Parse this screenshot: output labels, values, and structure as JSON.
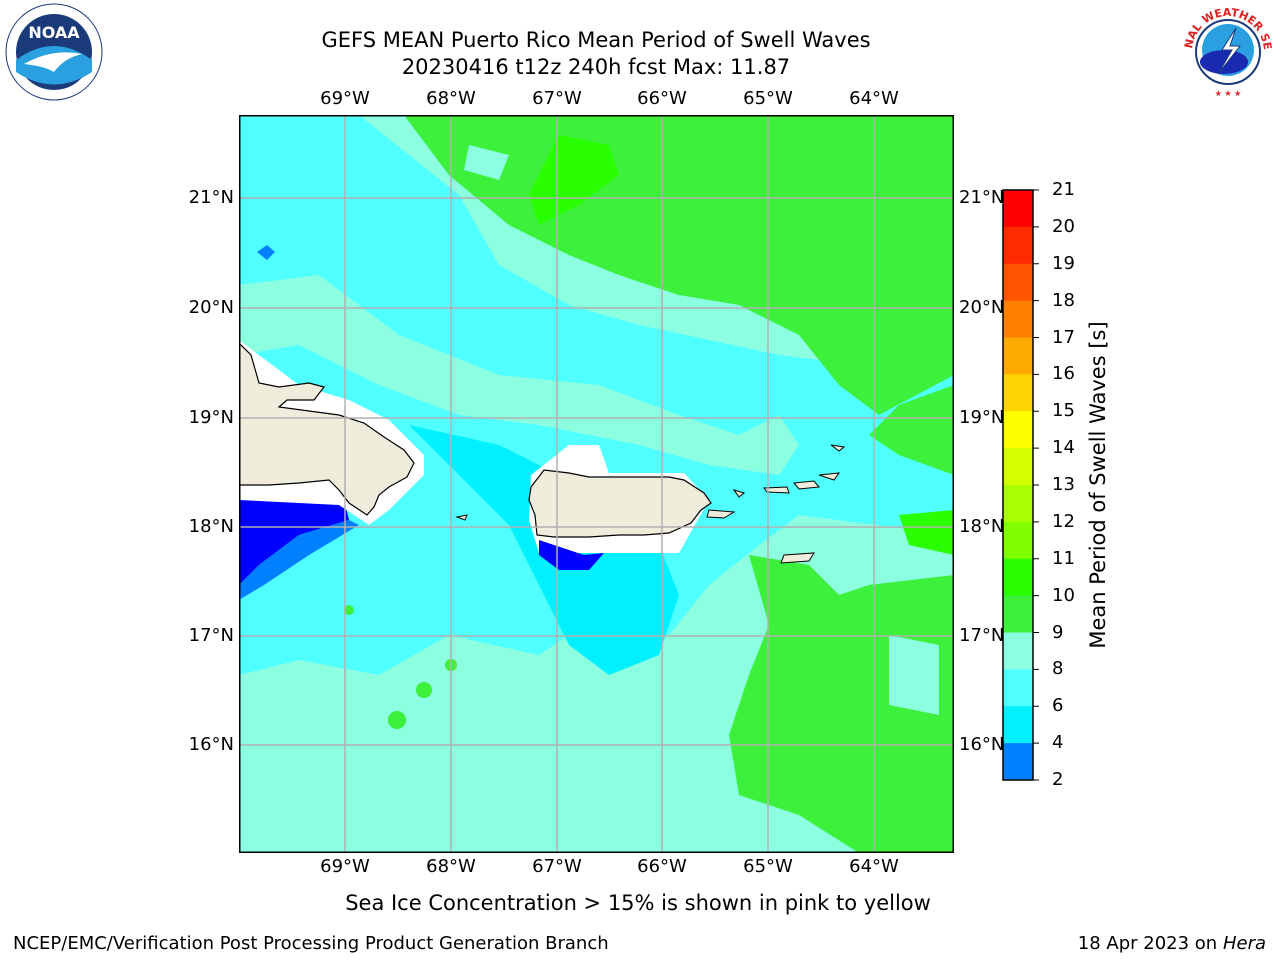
{
  "title_line1": "GEFS MEAN Puerto Rico Mean Period of Swell Waves",
  "title_line2": "20230416 t12z 240h fcst   Max: 11.87",
  "lon_ticks": [
    "69°W",
    "68°W",
    "67°W",
    "66°W",
    "65°W",
    "64°W"
  ],
  "lat_ticks": [
    "21°N",
    "20°N",
    "19°N",
    "18°N",
    "17°N",
    "16°N"
  ],
  "colorbar": {
    "label": "Mean Period of Swell Waves [s]",
    "ticks": [
      "21",
      "20",
      "19",
      "18",
      "17",
      "16",
      "15",
      "14",
      "13",
      "12",
      "11",
      "10",
      "9",
      "8",
      "6",
      "4",
      "2"
    ],
    "colors": [
      "#ff0000",
      "#ff2a00",
      "#ff5500",
      "#ff7f00",
      "#ffaa00",
      "#ffd400",
      "#ffff00",
      "#d4ff00",
      "#aaff00",
      "#7fff00",
      "#2aff00",
      "#3cf03c",
      "#8cffe0",
      "#50ffff",
      "#00f0ff",
      "#0080ff",
      "#0000ff"
    ]
  },
  "map": {
    "ocean_colors": {
      "low": "#50ffff",
      "mid": "#8cffe0",
      "high": "#3cf03c",
      "peak": "#2aff00",
      "min": "#0000ff",
      "min2": "#0080ff",
      "cyan": "#00f0ff"
    },
    "land_color": "#efecdc",
    "grid_color": "#b0b0b0"
  },
  "note": "Sea Ice Concentration > 15% is shown in pink to yellow",
  "footer_left": "NCEP/EMC/Verification Post Processing Product Generation Branch",
  "footer_date": "18 Apr 2023 on ",
  "footer_host": "Hera",
  "logos": {
    "noaa": "NOAA",
    "nws": "NATIONAL WEATHER SERVICE"
  }
}
